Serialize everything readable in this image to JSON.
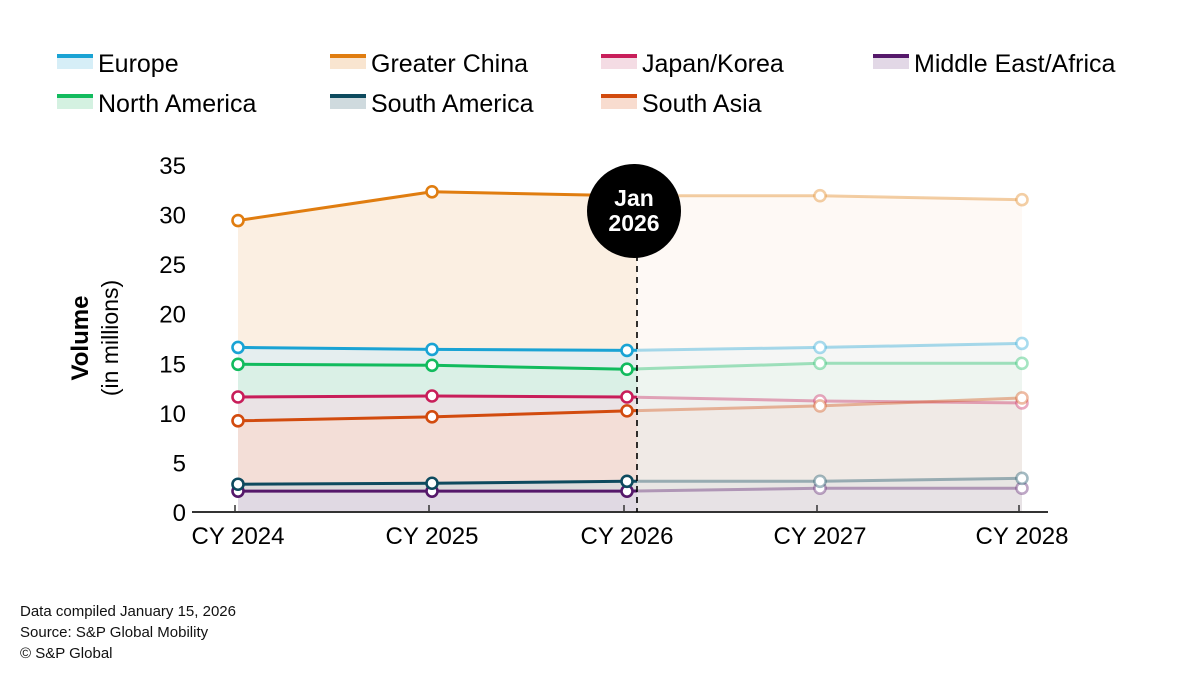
{
  "chart_data": {
    "type": "area",
    "title": "",
    "xlabel": "",
    "ylabel": "Volume",
    "ylabel_sub": "(in millions)",
    "ylim": [
      0,
      35
    ],
    "yticks": [
      0,
      5,
      10,
      15,
      20,
      25,
      30,
      35
    ],
    "categories": [
      "CY 2024",
      "CY 2025",
      "CY 2026",
      "CY 2027",
      "CY 2028"
    ],
    "grid": false,
    "legend_position": "top",
    "forecast_marker": {
      "label_line1": "Jan",
      "label_line2": "2026",
      "after_category_index": 2
    },
    "series": [
      {
        "name": "Europe",
        "color": "#1aa3d4",
        "fill": "#d6eef7",
        "values": [
          16.6,
          16.4,
          16.3,
          16.6,
          17.0
        ]
      },
      {
        "name": "Greater China",
        "color": "#e07d10",
        "fill": "#f9e5d0",
        "values": [
          29.4,
          32.3,
          31.9,
          31.9,
          31.5
        ]
      },
      {
        "name": "Japan/Korea",
        "color": "#c81e5a",
        "fill": "#f4dce4",
        "values": [
          11.6,
          11.7,
          11.6,
          11.2,
          11.0
        ]
      },
      {
        "name": "Middle East/Africa",
        "color": "#55186a",
        "fill": "#e2d8e6",
        "values": [
          2.1,
          2.1,
          2.1,
          2.4,
          2.4
        ]
      },
      {
        "name": "North America",
        "color": "#12bb5e",
        "fill": "#d4f1e1",
        "values": [
          14.9,
          14.8,
          14.4,
          15.0,
          15.0
        ]
      },
      {
        "name": "South America",
        "color": "#0d4a5e",
        "fill": "#cfdade",
        "values": [
          2.8,
          2.9,
          3.1,
          3.1,
          3.4
        ]
      },
      {
        "name": "South Asia",
        "color": "#d24b0e",
        "fill": "#f8dccf",
        "values": [
          9.2,
          9.6,
          10.2,
          10.7,
          11.5
        ]
      }
    ]
  },
  "footer": {
    "line1": "Data compiled January 15, 2026",
    "line2": "Source: S&P Global Mobility",
    "line3": "© S&P Global"
  }
}
